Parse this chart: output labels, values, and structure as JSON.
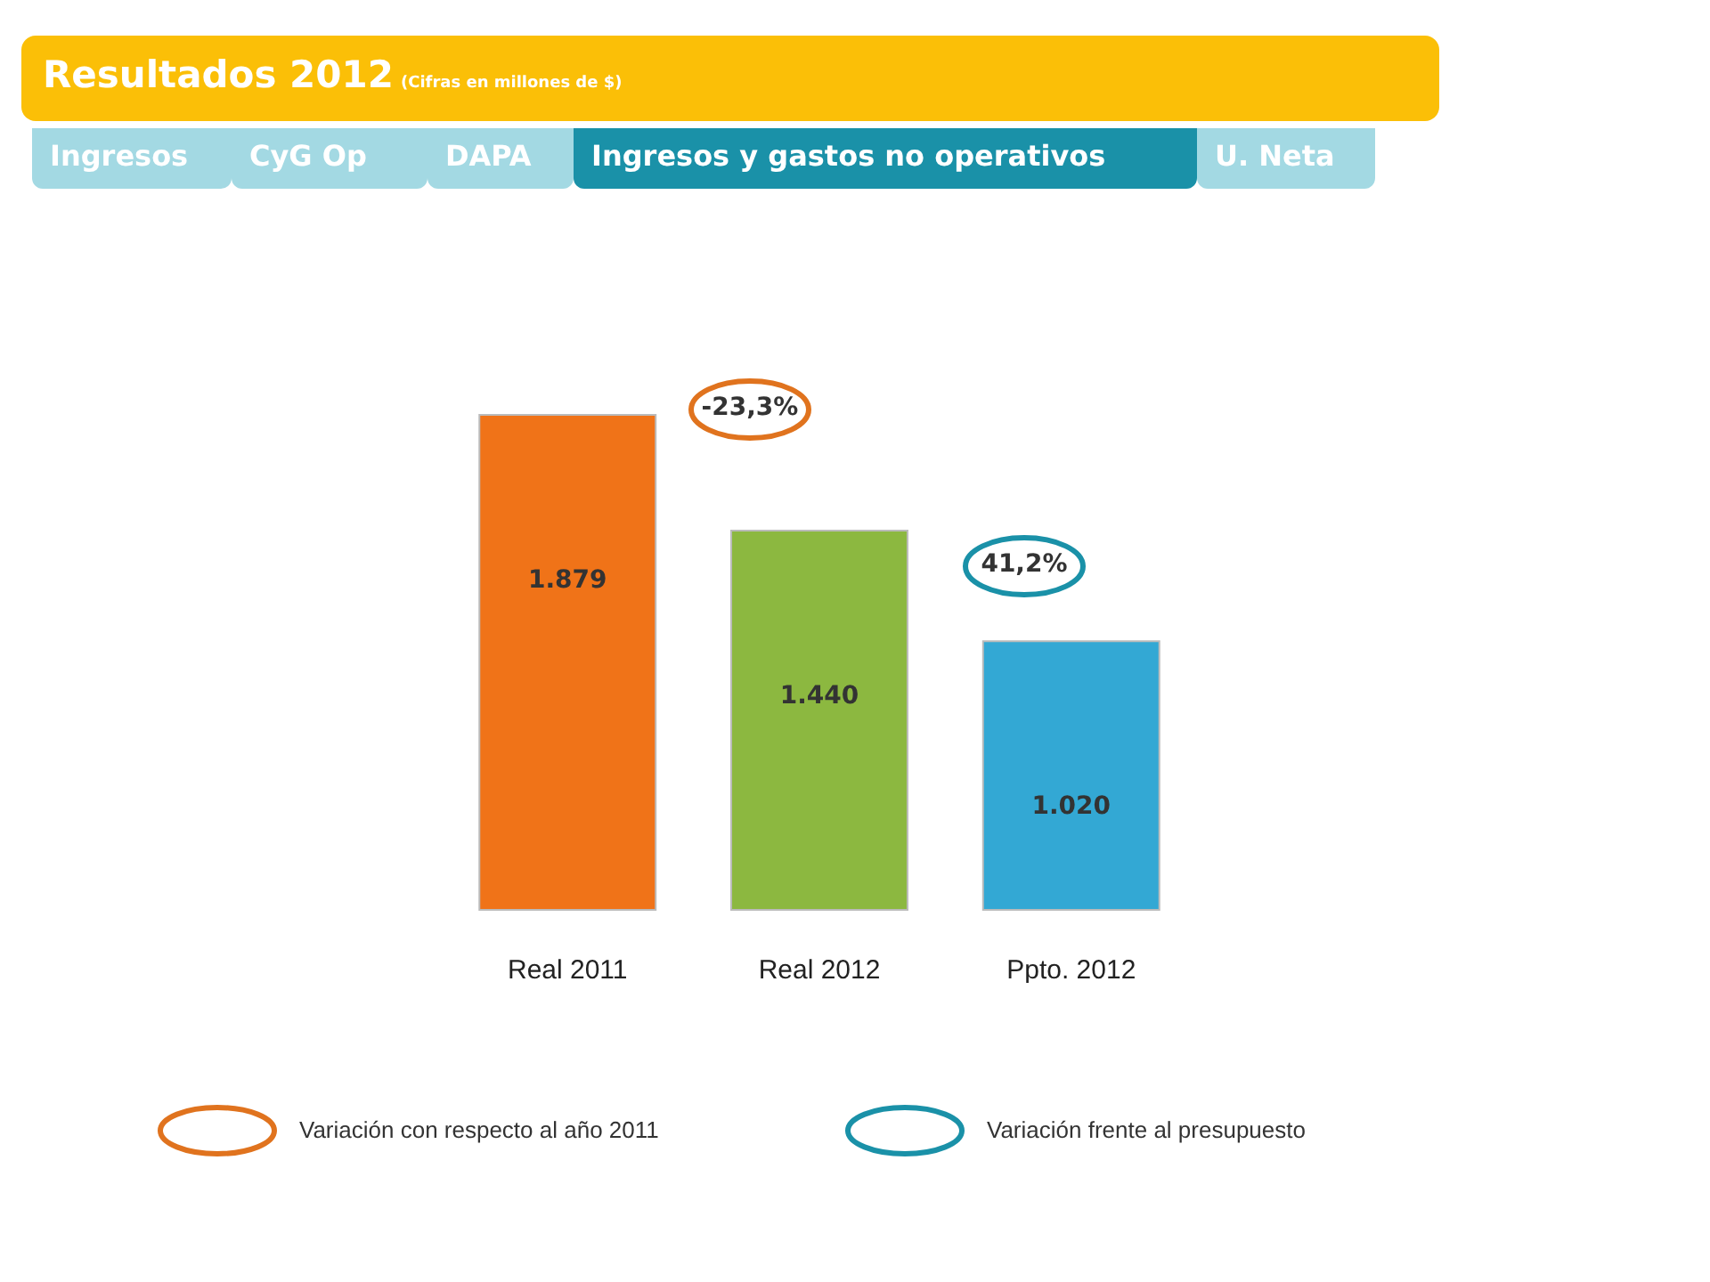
{
  "chart_data": {
    "type": "bar",
    "title": "Resultados 2012",
    "subtitle": "(Cifras en millones de $)",
    "categories": [
      "Real 2011",
      "Real 2012",
      "Ppto. 2012"
    ],
    "values": [
      1879,
      1440,
      1020
    ],
    "colors": [
      "#f07318",
      "#8cb840",
      "#33a8d4"
    ],
    "value_labels": [
      "1.879",
      "1.440",
      "1.020"
    ],
    "annotations": [
      "Ingresos",
      "CyG Op",
      "DAPA",
      "Ingresos y gastos no operativos",
      "U. Neta",
      "-23,3%",
      "41,2%",
      "Variación con respecto al año 2011",
      "Variación frente al presupuesto"
    ]
  }
}
